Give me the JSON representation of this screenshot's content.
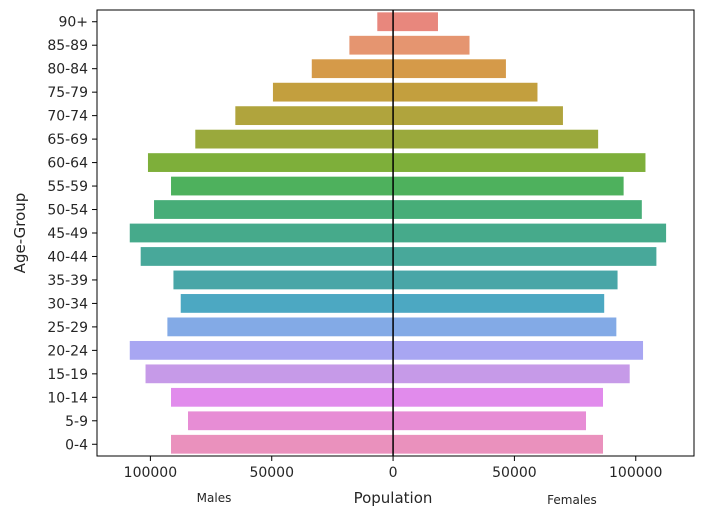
{
  "chart_data": {
    "type": "bar",
    "orientation": "horizontal",
    "chart_style": "population-pyramid",
    "xlabel": "Population",
    "ylabel": "Age-Group",
    "left_label": "Males",
    "right_label": "Females",
    "xlim": [
      -122000,
      124000
    ],
    "xticks": [
      -100000,
      -50000,
      0,
      50000,
      100000
    ],
    "xtick_labels": [
      "100000",
      "50000",
      "0",
      "50000",
      "100000"
    ],
    "grid": false,
    "categories": [
      "90+",
      "85-89",
      "80-84",
      "75-79",
      "70-74",
      "65-69",
      "60-64",
      "55-59",
      "50-54",
      "45-49",
      "40-44",
      "35-39",
      "30-34",
      "25-29",
      "20-24",
      "15-19",
      "10-14",
      "5-9",
      "0-4"
    ],
    "colors": [
      "#e8877d",
      "#e59570",
      "#d59a49",
      "#c39f3e",
      "#b0a43d",
      "#9aa93c",
      "#7eaf3a",
      "#4eb15d",
      "#47ad78",
      "#46aa8b",
      "#48a89a",
      "#49a6a7",
      "#4ca8c2",
      "#83aae6",
      "#a8a6f2",
      "#c69ae8",
      "#e18bec",
      "#e78dd5",
      "#ea91bd"
    ],
    "series": [
      {
        "name": "Males",
        "values": [
          -6500,
          -18000,
          -33500,
          -49500,
          -65000,
          -81500,
          -101000,
          -91500,
          -98500,
          -108500,
          -104000,
          -90500,
          -87500,
          -93000,
          -108500,
          -102000,
          -91500,
          -84500,
          -91500
        ]
      },
      {
        "name": "Females",
        "values": [
          18500,
          31500,
          46500,
          59500,
          70000,
          84500,
          104000,
          95000,
          102500,
          112500,
          108500,
          92500,
          87000,
          92000,
          103000,
          97500,
          86500,
          79500,
          86500
        ]
      }
    ]
  }
}
